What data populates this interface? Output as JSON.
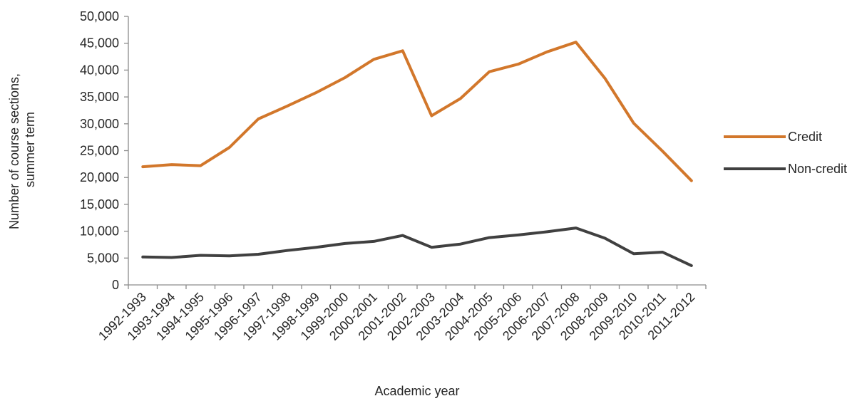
{
  "chart_data": {
    "type": "line",
    "title": "",
    "xlabel": "Academic year",
    "ylabel_lines": [
      "Number of course sections,",
      "summer term"
    ],
    "categories": [
      "1992-1993",
      "1993-1994",
      "1994-1995",
      "1995-1996",
      "1996-1997",
      "1997-1998",
      "1998-1999",
      "1999-2000",
      "2000-2001",
      "2001-2002",
      "2002-2003",
      "2003-2004",
      "2004-2005",
      "2005-2006",
      "2006-2007",
      "2007-2008",
      "2008-2009",
      "2009-2010",
      "2010-2011",
      "2011-2012"
    ],
    "yticks": [
      "0",
      "5,000",
      "10,000",
      "15,000",
      "20,000",
      "25,000",
      "30,000",
      "35,000",
      "40,000",
      "45,000",
      "50,000"
    ],
    "ylim": [
      0,
      50000
    ],
    "grid": false,
    "legend_position": "right",
    "series": [
      {
        "name": "Credit",
        "color": "#D2772B",
        "values": [
          22000,
          22400,
          22200,
          25600,
          30900,
          33300,
          35800,
          38600,
          42000,
          43600,
          31500,
          34700,
          39700,
          41100,
          43400,
          45200,
          38500,
          30100,
          24900,
          19400
        ]
      },
      {
        "name": "Non-credit",
        "color": "#404040",
        "values": [
          5200,
          5100,
          5500,
          5400,
          5700,
          6400,
          7000,
          7700,
          8100,
          9200,
          7000,
          7600,
          8800,
          9300,
          9900,
          10600,
          8700,
          5800,
          6100,
          3600
        ]
      }
    ]
  }
}
